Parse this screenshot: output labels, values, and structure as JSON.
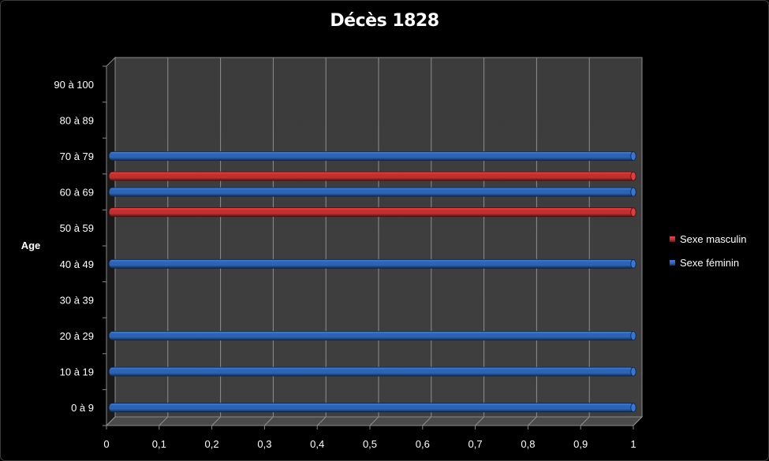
{
  "chart_data": {
    "type": "bar",
    "orientation": "horizontal",
    "style": "3d-cylinder",
    "title": "Décès 1828",
    "ylabel": "Age",
    "xlabel": "",
    "categories": [
      "0 à 9",
      "10 à 19",
      "20 à 29",
      "30 à 39",
      "40 à 49",
      "50 à 59",
      "60 à 69",
      "70 à 79",
      "80 à 89",
      "90 à 100"
    ],
    "series": [
      {
        "name": "Sexe masculin",
        "color": "#c0302f",
        "values": [
          0,
          0,
          0,
          0,
          0,
          1,
          1,
          0,
          0,
          0
        ]
      },
      {
        "name": "Sexe féminin",
        "color": "#2c63b4",
        "values": [
          1,
          1,
          1,
          0,
          1,
          0,
          1,
          1,
          0,
          0
        ]
      }
    ],
    "xlim": [
      0,
      1
    ],
    "xticks": [
      "0",
      "0,1",
      "0,2",
      "0,3",
      "0,4",
      "0,5",
      "0,6",
      "0,7",
      "0,8",
      "0,9",
      "1"
    ],
    "grid": true,
    "legend_position": "right"
  }
}
